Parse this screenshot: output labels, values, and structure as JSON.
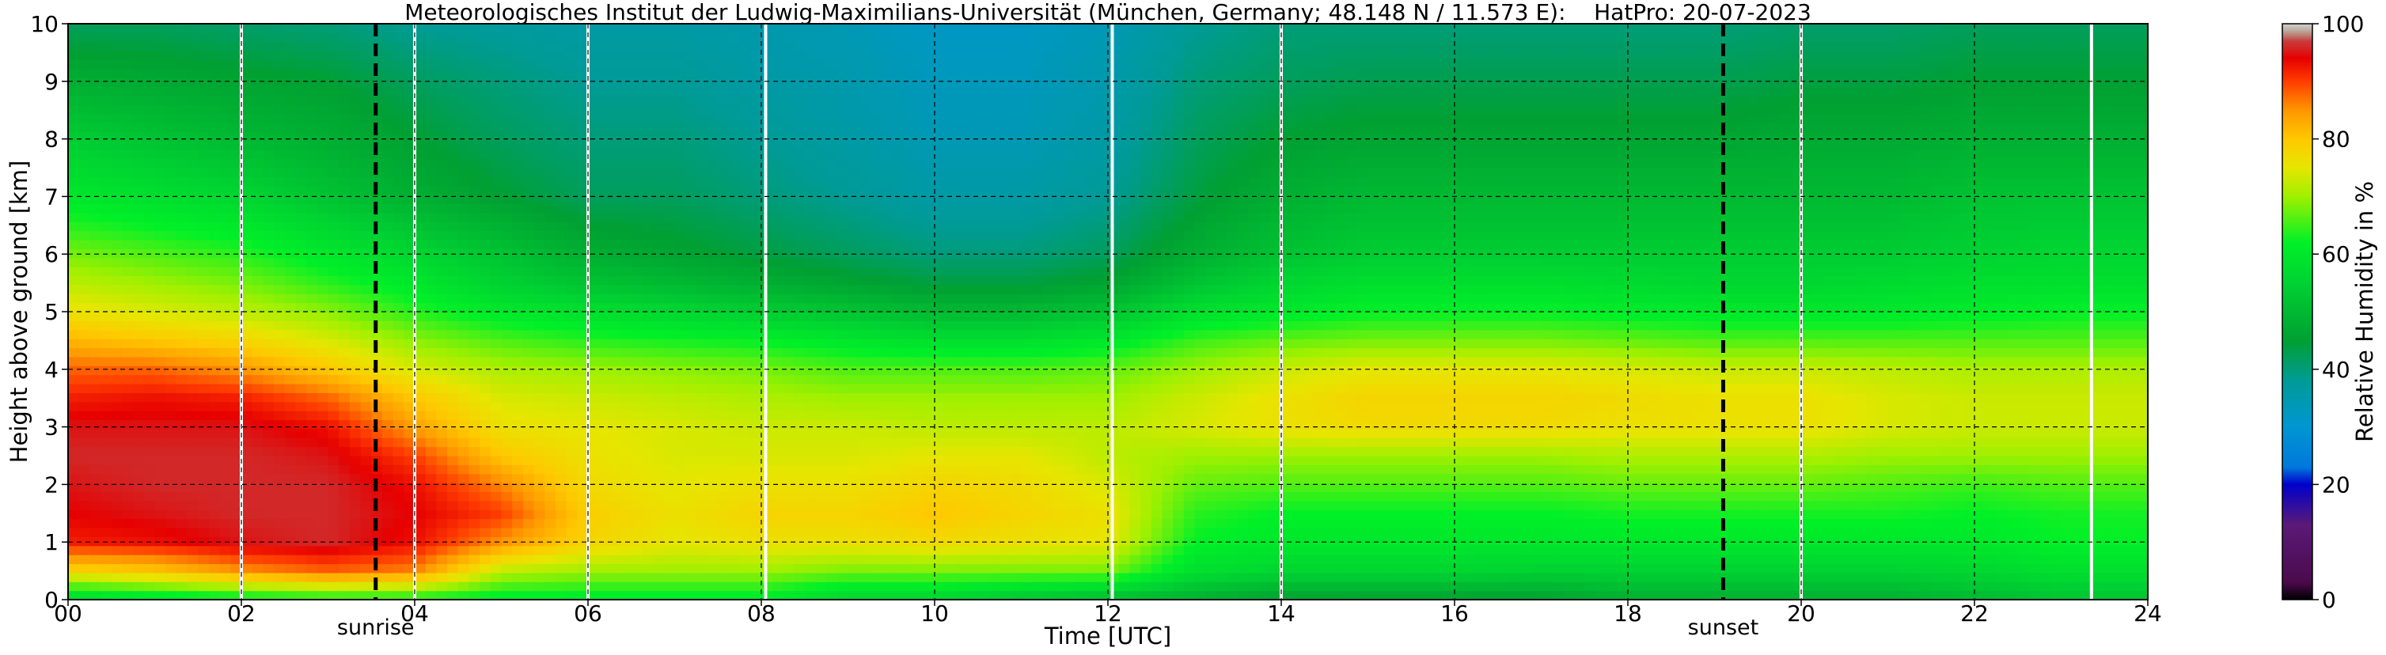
{
  "chart_data": {
    "type": "heatmap",
    "title": "Meteorologisches Institut der Ludwig-Maximilians-Universität (München, Germany; 48.148 N / 11.573 E):    HatPro: 20-07-2023",
    "xlabel": "Time [UTC]",
    "ylabel": "Height above ground [km]",
    "x_ticks": [
      "00",
      "02",
      "04",
      "06",
      "08",
      "10",
      "12",
      "14",
      "16",
      "18",
      "20",
      "22",
      "24"
    ],
    "x_tick_values": [
      0,
      2,
      4,
      6,
      8,
      10,
      12,
      14,
      16,
      18,
      20,
      22,
      24
    ],
    "y_ticks": [
      "0",
      "1",
      "2",
      "3",
      "4",
      "5",
      "6",
      "7",
      "8",
      "9",
      "10"
    ],
    "y_tick_values": [
      0,
      1,
      2,
      3,
      4,
      5,
      6,
      7,
      8,
      9,
      10
    ],
    "xlim": [
      0,
      24
    ],
    "ylim": [
      0,
      10
    ],
    "grid": true,
    "colorbar": {
      "label": "Relative Humidity in %",
      "range": [
        0,
        100
      ],
      "ticks": [
        "0",
        "20",
        "40",
        "60",
        "80",
        "100"
      ],
      "tick_values": [
        0,
        20,
        40,
        60,
        80,
        100
      ],
      "stops": [
        {
          "value": 0,
          "color": "#000000"
        },
        {
          "value": 3,
          "color": "#4b0a4b"
        },
        {
          "value": 13,
          "color": "#5a1a78"
        },
        {
          "value": 20,
          "color": "#0000cc"
        },
        {
          "value": 23,
          "color": "#0078dc"
        },
        {
          "value": 30,
          "color": "#0096d2"
        },
        {
          "value": 38,
          "color": "#009b96"
        },
        {
          "value": 45,
          "color": "#00a032"
        },
        {
          "value": 55,
          "color": "#00d232"
        },
        {
          "value": 62,
          "color": "#00f028"
        },
        {
          "value": 70,
          "color": "#a0f000"
        },
        {
          "value": 75,
          "color": "#e6e600"
        },
        {
          "value": 80,
          "color": "#ffc800"
        },
        {
          "value": 85,
          "color": "#ff9600"
        },
        {
          "value": 90,
          "color": "#ff3c00"
        },
        {
          "value": 94,
          "color": "#e60000"
        },
        {
          "value": 97,
          "color": "#c83c3c"
        },
        {
          "value": 98.5,
          "color": "#b4a090"
        },
        {
          "value": 100,
          "color": "#d2d2d2"
        }
      ]
    },
    "annotations": [
      {
        "label": "sunrise",
        "x": 3.55
      },
      {
        "label": "sunset",
        "x": 19.1
      }
    ],
    "gap_lines_x": [
      2.0,
      4.0,
      6.0,
      8.05,
      12.05,
      14.0,
      20.0,
      23.35
    ],
    "humidity_profile_rows": [
      {
        "height_km": 0.0,
        "values": [
          55,
          58,
          60,
          62,
          62,
          60,
          60,
          60,
          60,
          55,
          55,
          52,
          50,
          48,
          45,
          45,
          45,
          45,
          48,
          48,
          48,
          48,
          50,
          52,
          52
        ]
      },
      {
        "height_km": 0.5,
        "values": [
          78,
          80,
          85,
          88,
          86,
          72,
          70,
          70,
          70,
          68,
          68,
          68,
          68,
          58,
          56,
          56,
          56,
          55,
          55,
          55,
          55,
          55,
          56,
          58,
          58
        ]
      },
      {
        "height_km": 1.0,
        "values": [
          92,
          93,
          95,
          96,
          93,
          85,
          78,
          75,
          76,
          76,
          77,
          76,
          75,
          62,
          60,
          60,
          60,
          60,
          60,
          60,
          60,
          60,
          60,
          62,
          62
        ]
      },
      {
        "height_km": 1.5,
        "values": [
          94,
          95,
          96,
          96,
          94,
          90,
          79,
          76,
          78,
          78,
          80,
          78,
          76,
          64,
          62,
          62,
          62,
          62,
          63,
          63,
          63,
          63,
          62,
          63,
          63
        ]
      },
      {
        "height_km": 2.0,
        "values": [
          95,
          96,
          96,
          96,
          93,
          86,
          77,
          75,
          76,
          76,
          78,
          77,
          74,
          67,
          66,
          66,
          66,
          66,
          67,
          67,
          67,
          66,
          65,
          66,
          66
        ]
      },
      {
        "height_km": 2.5,
        "values": [
          96,
          96,
          96,
          95,
          90,
          80,
          76,
          74,
          74,
          74,
          75,
          75,
          72,
          70,
          70,
          70,
          70,
          70,
          71,
          71,
          71,
          70,
          70,
          70,
          70
        ]
      },
      {
        "height_km": 3.0,
        "values": [
          95,
          95,
          95,
          93,
          84,
          76,
          75,
          74,
          73,
          73,
          72,
          72,
          72,
          74,
          76,
          77,
          77,
          77,
          76,
          76,
          76,
          74,
          73,
          73,
          73
        ]
      },
      {
        "height_km": 3.5,
        "values": [
          92,
          93,
          92,
          88,
          80,
          74,
          73,
          72,
          71,
          70,
          70,
          70,
          70,
          73,
          76,
          78,
          78,
          78,
          77,
          76,
          76,
          74,
          73,
          73,
          73
        ]
      },
      {
        "height_km": 4.0,
        "values": [
          88,
          88,
          85,
          80,
          74,
          71,
          70,
          69,
          68,
          66,
          66,
          66,
          67,
          70,
          73,
          75,
          75,
          75,
          74,
          73,
          73,
          72,
          71,
          71,
          71
        ]
      },
      {
        "height_km": 4.5,
        "values": [
          82,
          80,
          78,
          74,
          69,
          66,
          64,
          63,
          62,
          60,
          58,
          58,
          60,
          65,
          67,
          68,
          68,
          68,
          67,
          66,
          66,
          66,
          66,
          66,
          66
        ]
      },
      {
        "height_km": 5.0,
        "values": [
          76,
          74,
          72,
          69,
          64,
          60,
          58,
          56,
          54,
          52,
          50,
          50,
          52,
          58,
          60,
          62,
          62,
          62,
          61,
          60,
          60,
          60,
          61,
          62,
          62
        ]
      },
      {
        "height_km": 5.5,
        "values": [
          72,
          70,
          68,
          64,
          60,
          55,
          52,
          50,
          48,
          46,
          44,
          44,
          46,
          52,
          56,
          58,
          58,
          58,
          57,
          56,
          56,
          57,
          58,
          58,
          58
        ]
      },
      {
        "height_km": 6.0,
        "values": [
          68,
          66,
          64,
          60,
          56,
          52,
          48,
          46,
          44,
          42,
          40,
          40,
          42,
          48,
          52,
          54,
          54,
          54,
          54,
          54,
          54,
          54,
          55,
          56,
          56
        ]
      },
      {
        "height_km": 7.0,
        "values": [
          60,
          58,
          56,
          52,
          48,
          45,
          42,
          42,
          40,
          38,
          36,
          36,
          38,
          44,
          48,
          50,
          50,
          50,
          50,
          50,
          50,
          50,
          52,
          52,
          52
        ]
      },
      {
        "height_km": 8.0,
        "values": [
          54,
          52,
          50,
          48,
          45,
          42,
          40,
          40,
          38,
          36,
          34,
          34,
          36,
          42,
          45,
          46,
          46,
          46,
          46,
          46,
          47,
          47,
          48,
          48,
          48
        ]
      },
      {
        "height_km": 9.0,
        "values": [
          48,
          47,
          46,
          45,
          42,
          40,
          38,
          38,
          36,
          35,
          33,
          33,
          35,
          40,
          42,
          43,
          43,
          43,
          43,
          43,
          44,
          44,
          45,
          45,
          45
        ]
      },
      {
        "height_km": 10.0,
        "values": [
          42,
          42,
          41,
          40,
          38,
          37,
          36,
          36,
          35,
          34,
          32,
          32,
          34,
          38,
          40,
          40,
          40,
          40,
          40,
          40,
          41,
          41,
          42,
          42,
          42
        ]
      }
    ]
  }
}
